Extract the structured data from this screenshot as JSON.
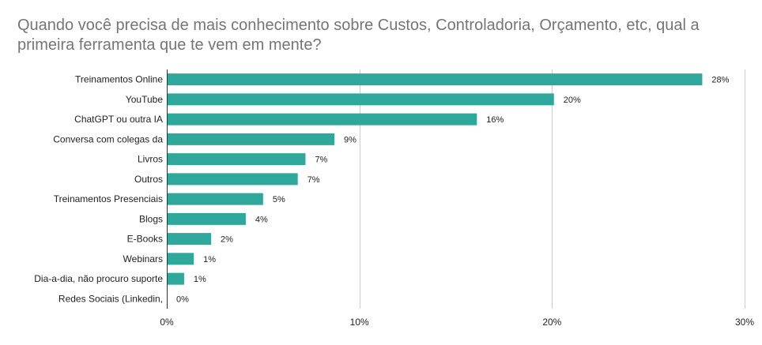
{
  "chart_data": {
    "type": "bar",
    "orientation": "horizontal",
    "title": "Quando você precisa de mais conhecimento sobre Custos, Controladoria, Orçamento, etc, qual a primeira ferramenta que te vem em mente?",
    "categories": [
      "Treinamentos Online",
      "YouTube",
      "ChatGPT ou outra IA",
      "Conversa com colegas da",
      "Livros",
      "Outros",
      "Treinamentos Presenciais",
      "Blogs",
      "E-Books",
      "Webinars",
      "Dia-a-dia, não procuro suporte",
      "Redes Sociais (Linkedin,"
    ],
    "values": [
      27.8,
      20.1,
      16.1,
      8.7,
      7.2,
      6.8,
      5.0,
      4.1,
      2.3,
      1.4,
      0.9,
      0.0
    ],
    "value_labels": [
      "28%",
      "20%",
      "16%",
      "9%",
      "7%",
      "7%",
      "5%",
      "4%",
      "2%",
      "1%",
      "1%",
      "0%"
    ],
    "x_ticks": [
      0,
      10,
      20,
      30
    ],
    "x_tick_labels": [
      "0%",
      "10%",
      "20%",
      "30%"
    ],
    "xlim": [
      0,
      30
    ],
    "grid": true,
    "bar_color": "#2fa79a",
    "grid_color": "#cccccc",
    "axis_color": "#333333"
  }
}
